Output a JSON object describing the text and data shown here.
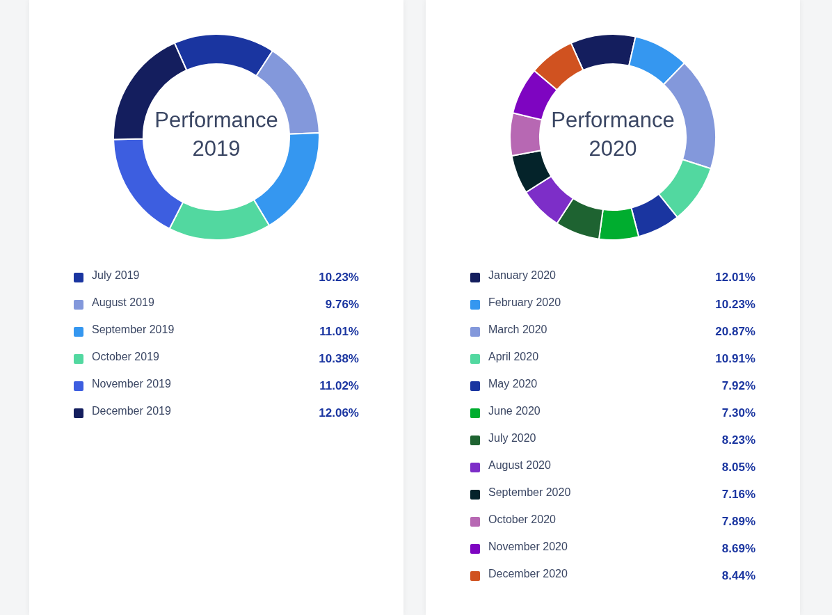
{
  "chart_data": [
    {
      "type": "donut",
      "title": "Performance 2019",
      "categories": [
        "July 2019",
        "August 2019",
        "September 2019",
        "October 2019",
        "November 2019",
        "December 2019"
      ],
      "values": [
        10.23,
        9.76,
        11.01,
        10.38,
        11.02,
        12.06
      ],
      "value_labels": [
        "10.23%",
        "9.76%",
        "11.01%",
        "10.38%",
        "11.02%",
        "12.06%"
      ],
      "colors": [
        "#1a35a0",
        "#8398db",
        "#3597f0",
        "#52d8a0",
        "#3d5ee0",
        "#141e5e"
      ],
      "legend": "bottom"
    },
    {
      "type": "donut",
      "title": "Performance 2020",
      "categories": [
        "January 2020",
        "February 2020",
        "March 2020",
        "April 2020",
        "May 2020",
        "June 2020",
        "July 2020",
        "August 2020",
        "September 2020",
        "October 2020",
        "November 2020",
        "December 2020"
      ],
      "values": [
        12.01,
        10.23,
        20.87,
        10.91,
        7.92,
        7.3,
        8.23,
        8.05,
        7.16,
        7.89,
        8.69,
        8.44
      ],
      "value_labels": [
        "12.01%",
        "10.23%",
        "20.87%",
        "10.91%",
        "7.92%",
        "7.30%",
        "8.23%",
        "8.05%",
        "7.16%",
        "7.89%",
        "8.69%",
        "8.44%"
      ],
      "colors": [
        "#141e5e",
        "#3597f0",
        "#8398db",
        "#52d8a0",
        "#1a35a0",
        "#00ad2f",
        "#1e6331",
        "#7d2ec8",
        "#04232a",
        "#b768b3",
        "#7e05c1",
        "#d05220"
      ],
      "legend": "bottom"
    }
  ]
}
